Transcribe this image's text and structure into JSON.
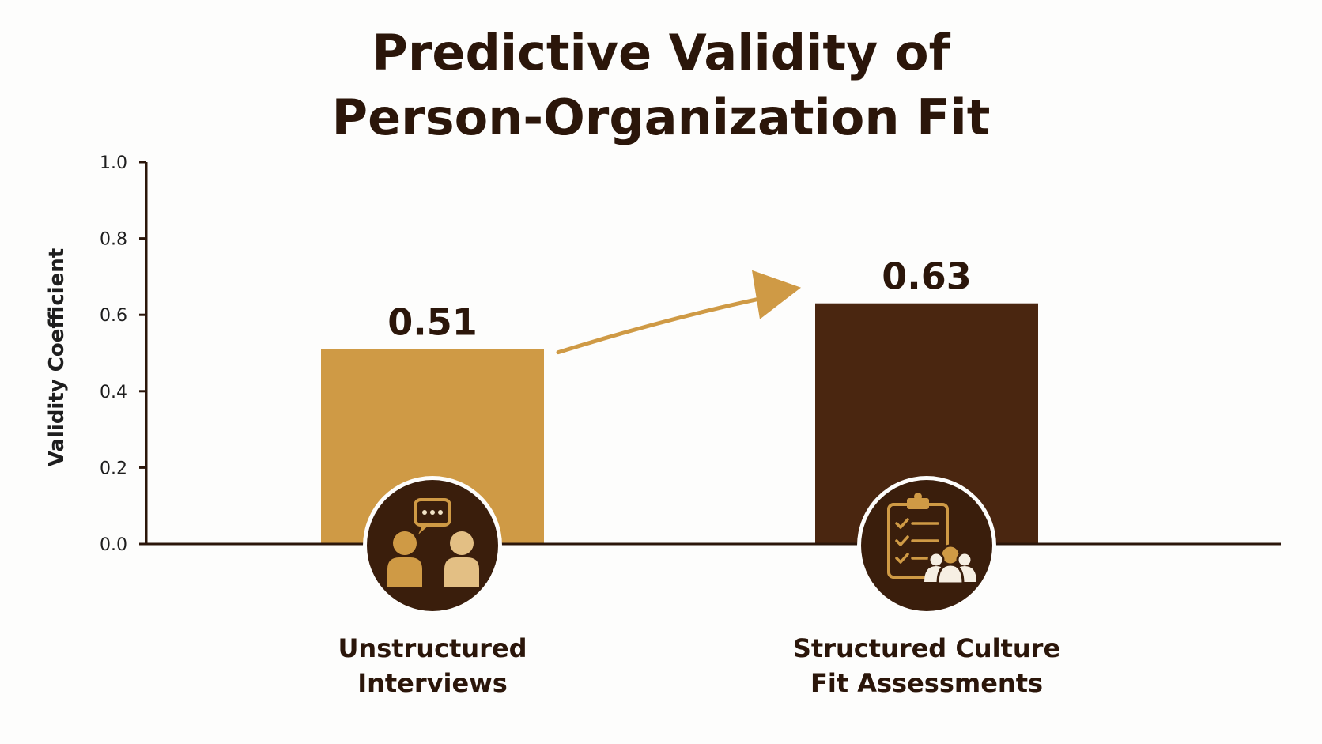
{
  "chart_data": {
    "type": "bar",
    "title_lines": [
      "Predictive Validity of",
      "Person-Organization Fit"
    ],
    "xlabel": "",
    "ylabel": "Validity Coefficient",
    "ylim": [
      0,
      1.0
    ],
    "yticks": [
      "0.0",
      "0.2",
      "0.4",
      "0.6",
      "0.8",
      "1.0"
    ],
    "grid": false,
    "categories": [
      [
        "Unstructured",
        "Interviews"
      ],
      [
        "Structured Culture",
        "Fit Assessments"
      ]
    ],
    "values": [
      0.51,
      0.63
    ],
    "value_labels": [
      "0.51",
      "0.63"
    ],
    "bar_colors": [
      "#cf9a45",
      "#4a2610"
    ],
    "icons": [
      "conversation-people-icon",
      "clipboard-checklist-team-icon"
    ],
    "annotation": "arrow-from-first-to-second-bar"
  },
  "colors": {
    "title": "#2b160a",
    "axis": "#2b160a",
    "accent": "#cf9a45",
    "dark": "#4a2610",
    "icon_circle": "#3a1e0c",
    "background": "#fdfdfc"
  }
}
